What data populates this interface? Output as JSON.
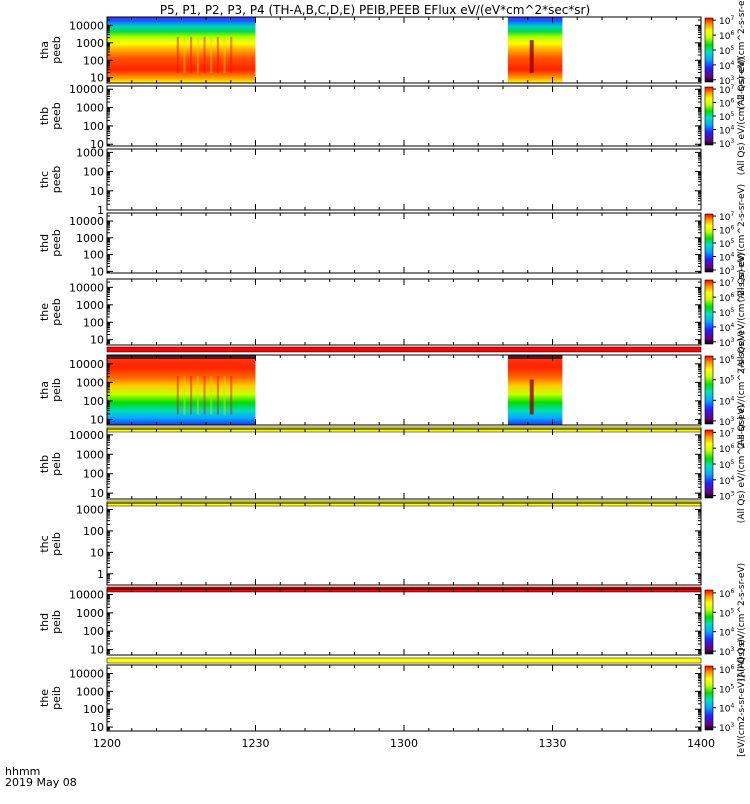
{
  "title": "P5, P1, P2, P3, P4 (TH-A,B,C,D,E) PEIB,PEEB EFlux eV/(eV*cm^2*sec*sr)",
  "time_axis": {
    "label_line1": "hhmm",
    "label_line2": "2019 May 08",
    "ticks": [
      "1200",
      "1230",
      "1300",
      "1330",
      "1400"
    ]
  },
  "chart_data": {
    "type": "heatmap",
    "title": "P5, P1, P2, P3, P4 (TH-A,B,C,D,E) PEIB,PEEB EFlux eV/(eV*cm^2*sec*sr)",
    "x_axis": {
      "label": "hhmm",
      "date": "2019 May 08",
      "range": [
        "12:00",
        "14:00"
      ],
      "ticks": [
        "1200",
        "1230",
        "1300",
        "1330",
        "1400"
      ]
    },
    "y_scale": "log",
    "color_scale": "log",
    "panels": [
      {
        "name": "tha peeb",
        "label_line1": "tha",
        "label_line2": "peeb",
        "ytick_values": [
          10,
          100,
          1000,
          10000
        ],
        "ytick_labels": [
          "10",
          "100",
          "1000",
          "10000"
        ],
        "ylim": [
          5,
          30000
        ],
        "colorbar": {
          "tick_exps": [
            3,
            4,
            5,
            6,
            7
          ],
          "label": "(All Qs) eV/(cm^2-s-sr-eV)"
        },
        "data_intervals": [
          [
            "12:00",
            "12:30"
          ],
          [
            "13:21",
            "13:32"
          ]
        ],
        "flags": []
      },
      {
        "name": "thb peeb",
        "label_line1": "thb",
        "label_line2": "peeb",
        "ytick_values": [
          10,
          100,
          1000,
          10000
        ],
        "ytick_labels": [
          "10",
          "100",
          "1000",
          "10000"
        ],
        "ylim": [
          8,
          15000
        ],
        "colorbar": {
          "tick_exps": [
            3,
            4,
            5,
            6,
            7
          ],
          "label": "(All Qs) eV/(cm^2-s-sr-eV)"
        },
        "data_intervals": [],
        "flags": []
      },
      {
        "name": "thc peeb",
        "label_line1": "thc",
        "label_line2": "peeb",
        "ytick_values": [
          1,
          10,
          100,
          1000
        ],
        "ytick_labels": [
          "1",
          "10",
          "100",
          "1000"
        ],
        "ylim": [
          1,
          1500
        ],
        "colorbar": null,
        "data_intervals": [],
        "flags": []
      },
      {
        "name": "thd peeb",
        "label_line1": "thd",
        "label_line2": "peeb",
        "ytick_values": [
          10,
          100,
          1000,
          10000
        ],
        "ytick_labels": [
          "10",
          "100",
          "1000",
          "10000"
        ],
        "ylim": [
          8,
          30000
        ],
        "colorbar": {
          "tick_exps": [
            3,
            4,
            5,
            6,
            7
          ],
          "label": "(All Qs) eV/(cm^2-s-sr-eV)"
        },
        "data_intervals": [],
        "flags": []
      },
      {
        "name": "the peeb",
        "label_line1": "the",
        "label_line2": "peeb",
        "ytick_values": [
          10,
          100,
          1000,
          10000
        ],
        "ytick_labels": [
          "10",
          "100",
          "1000",
          "10000"
        ],
        "ylim": [
          5,
          30000
        ],
        "colorbar": {
          "tick_exps": [
            3,
            4,
            5,
            6,
            7
          ],
          "label": "(All Qs) eV/(cm^2-s-sr-eV)"
        },
        "data_intervals": [],
        "flags": [
          "red"
        ]
      },
      {
        "name": "tha peib",
        "label_line1": "tha",
        "label_line2": "peib",
        "ytick_values": [
          10,
          100,
          1000,
          10000
        ],
        "ytick_labels": [
          "10",
          "100",
          "1000",
          "10000"
        ],
        "ylim": [
          5,
          30000
        ],
        "colorbar": {
          "tick_exps": [
            3,
            4,
            5,
            6
          ],
          "label": "(All Qs) eV/(cm^2-s-sr-eV)"
        },
        "data_intervals": [
          [
            "12:00",
            "12:30"
          ],
          [
            "13:21",
            "13:32"
          ]
        ],
        "flags": [
          "yellow"
        ]
      },
      {
        "name": "thb peib",
        "label_line1": "thb",
        "label_line2": "peib",
        "ytick_values": [
          10,
          100,
          1000,
          10000
        ],
        "ytick_labels": [
          "10",
          "100",
          "1000",
          "10000"
        ],
        "ylim": [
          5,
          20000
        ],
        "colorbar": {
          "tick_exps": [
            3,
            4,
            5,
            6,
            7
          ],
          "label": "(All Qs) eV/(cm^2-s-sr-eV)"
        },
        "data_intervals": [],
        "flags": [
          "yellow"
        ]
      },
      {
        "name": "thc peib",
        "label_line1": "thc",
        "label_line2": "peib",
        "ytick_values": [
          1,
          10,
          100,
          1000
        ],
        "ytick_labels": [
          "1",
          "10",
          "100",
          "1000"
        ],
        "ylim": [
          0.3,
          2000
        ],
        "colorbar": null,
        "data_intervals": [],
        "flags": [
          "red"
        ]
      },
      {
        "name": "thd peib",
        "label_line1": "thd",
        "label_line2": "peib",
        "ytick_values": [
          10,
          100,
          1000,
          10000
        ],
        "ytick_labels": [
          "10",
          "100",
          "1000",
          "10000"
        ],
        "ylim": [
          5,
          20000
        ],
        "colorbar": {
          "tick_exps": [
            3,
            4,
            5,
            6
          ],
          "label": "(All Qs) eV/(cm^2-s-sr-eV)"
        },
        "data_intervals": [],
        "flags": [
          "yellow"
        ]
      },
      {
        "name": "the peib",
        "label_line1": "the",
        "label_line2": "peib",
        "ytick_values": [
          10,
          100,
          1000,
          10000
        ],
        "ytick_labels": [
          "10",
          "100",
          "1000",
          "10000"
        ],
        "ylim": [
          6,
          30000
        ],
        "colorbar": {
          "tick_exps": [
            3,
            4,
            5,
            6
          ],
          "label": "[eV/(cm2-s-sr-eV)] (All Qs)"
        },
        "data_intervals": [],
        "flags": []
      }
    ]
  },
  "colors": {
    "flag_red": "#ff0000",
    "flag_yellow": "#ffff00",
    "colormap": [
      "#6a0080",
      "#2222ff",
      "#00aaff",
      "#00e0c0",
      "#00dd00",
      "#ccff00",
      "#ffff00",
      "#ff9900",
      "#ff0000"
    ]
  }
}
